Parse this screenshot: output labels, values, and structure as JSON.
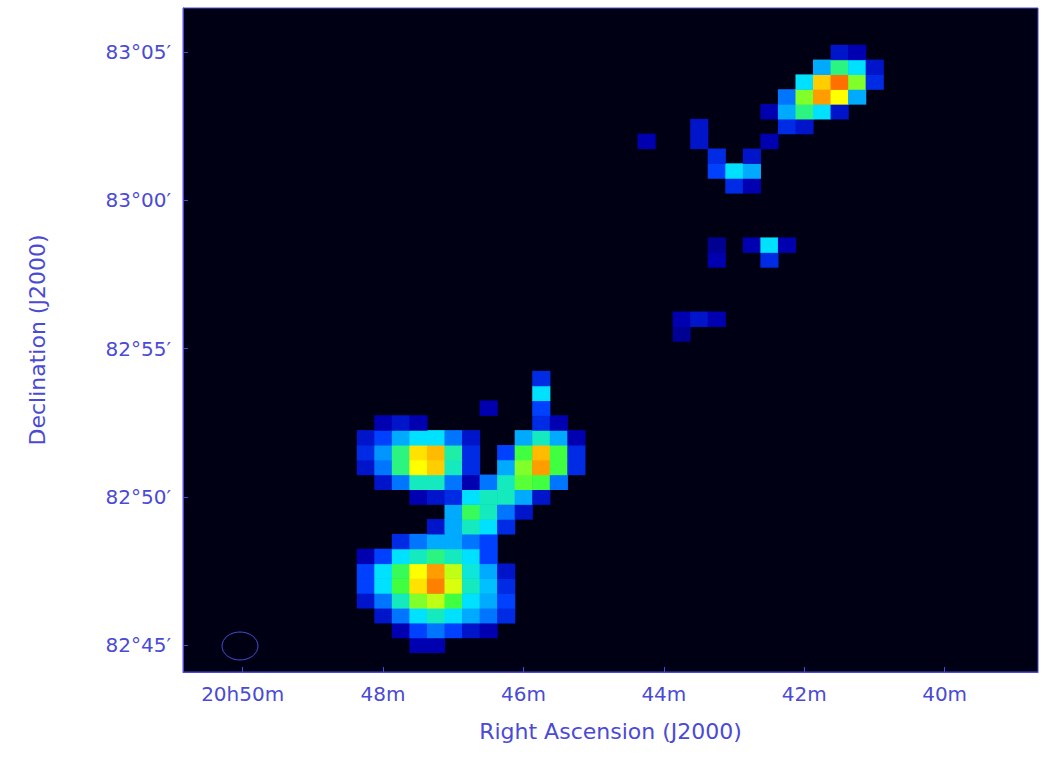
{
  "chart_data": {
    "type": "heatmap",
    "x_label": "Right Ascension (J2000)",
    "y_label": "Declination (J2000)",
    "xlim": [
      50.85,
      38.67
    ],
    "xticks": [
      {
        "value": 50,
        "label": "20h50m"
      },
      {
        "value": 48,
        "label": "48m"
      },
      {
        "value": 46,
        "label": "46m"
      },
      {
        "value": 44,
        "label": "44m"
      },
      {
        "value": 42,
        "label": "42m"
      },
      {
        "value": 40,
        "label": "40m"
      }
    ],
    "ylim": [
      4964.09,
      4986.49
    ],
    "yticks": [
      {
        "value": 4965,
        "label": "82°45′"
      },
      {
        "value": 4970,
        "label": "82°50′"
      },
      {
        "value": 4975,
        "label": "82°55′"
      },
      {
        "value": 4980,
        "label": "83°00′"
      },
      {
        "value": 4985,
        "label": "83°05′"
      }
    ],
    "grid": false,
    "color_range": [
      0,
      100
    ],
    "cells": [
      [
        47.5,
        4965,
        15
      ],
      [
        47.25,
        4965,
        15
      ],
      [
        47.75,
        4965.5,
        15
      ],
      [
        47.5,
        4965.5,
        30
      ],
      [
        47.25,
        4965.5,
        35
      ],
      [
        47.0,
        4965.5,
        30
      ],
      [
        46.75,
        4965.5,
        20
      ],
      [
        46.5,
        4965.5,
        15
      ],
      [
        48.0,
        4966,
        20
      ],
      [
        47.75,
        4966,
        35
      ],
      [
        47.5,
        4966,
        45
      ],
      [
        47.25,
        4966,
        50
      ],
      [
        47.0,
        4966,
        45
      ],
      [
        46.75,
        4966,
        40
      ],
      [
        46.5,
        4966,
        35
      ],
      [
        46.25,
        4966,
        25
      ],
      [
        48.25,
        4966.5,
        20
      ],
      [
        48.0,
        4966.5,
        35
      ],
      [
        47.75,
        4966.5,
        50
      ],
      [
        47.5,
        4966.5,
        65
      ],
      [
        47.25,
        4966.5,
        70
      ],
      [
        47.0,
        4966.5,
        60
      ],
      [
        46.75,
        4966.5,
        45
      ],
      [
        46.5,
        4966.5,
        40
      ],
      [
        46.25,
        4966.5,
        30
      ],
      [
        48.25,
        4967,
        30
      ],
      [
        48.0,
        4967,
        45
      ],
      [
        47.75,
        4967,
        60
      ],
      [
        47.5,
        4967,
        78
      ],
      [
        47.25,
        4967,
        88
      ],
      [
        47.0,
        4967,
        72
      ],
      [
        46.75,
        4967,
        50
      ],
      [
        46.5,
        4967,
        42
      ],
      [
        46.25,
        4967,
        25
      ],
      [
        48.25,
        4967.5,
        30
      ],
      [
        48.0,
        4967.5,
        45
      ],
      [
        47.75,
        4967.5,
        58
      ],
      [
        47.5,
        4967.5,
        75
      ],
      [
        47.25,
        4967.5,
        85
      ],
      [
        47.0,
        4967.5,
        70
      ],
      [
        46.75,
        4967.5,
        48
      ],
      [
        46.5,
        4967.5,
        40
      ],
      [
        46.25,
        4967.5,
        20
      ],
      [
        48.25,
        4968,
        15
      ],
      [
        48.0,
        4968,
        30
      ],
      [
        47.75,
        4968,
        45
      ],
      [
        47.5,
        4968,
        50
      ],
      [
        47.25,
        4968,
        55
      ],
      [
        47.0,
        4968,
        50
      ],
      [
        46.75,
        4968,
        45
      ],
      [
        46.5,
        4968,
        30
      ],
      [
        47.75,
        4968.5,
        25
      ],
      [
        47.5,
        4968.5,
        35
      ],
      [
        47.25,
        4968.5,
        40
      ],
      [
        47.0,
        4968.5,
        40
      ],
      [
        46.75,
        4968.5,
        35
      ],
      [
        46.5,
        4968.5,
        30
      ],
      [
        47.25,
        4969,
        20
      ],
      [
        47.0,
        4969,
        40
      ],
      [
        46.75,
        4969,
        50
      ],
      [
        46.5,
        4969,
        45
      ],
      [
        46.25,
        4969,
        25
      ],
      [
        47.0,
        4969.5,
        40
      ],
      [
        46.75,
        4969.5,
        58
      ],
      [
        46.5,
        4969.5,
        50
      ],
      [
        46.25,
        4969.5,
        35
      ],
      [
        46.0,
        4969.5,
        20
      ],
      [
        47.5,
        4970,
        15
      ],
      [
        47.25,
        4970,
        20
      ],
      [
        47.0,
        4970,
        25
      ],
      [
        46.75,
        4970,
        45
      ],
      [
        46.5,
        4970,
        50
      ],
      [
        46.25,
        4970,
        50
      ],
      [
        46.0,
        4970,
        40
      ],
      [
        45.75,
        4970,
        20
      ],
      [
        48.0,
        4970.5,
        20
      ],
      [
        47.75,
        4970.5,
        35
      ],
      [
        47.5,
        4970.5,
        50
      ],
      [
        47.25,
        4970.5,
        50
      ],
      [
        47.0,
        4970.5,
        35
      ],
      [
        46.75,
        4970.5,
        15
      ],
      [
        46.5,
        4970.5,
        35
      ],
      [
        46.25,
        4970.5,
        50
      ],
      [
        46.0,
        4970.5,
        62
      ],
      [
        45.75,
        4970.5,
        60
      ],
      [
        45.5,
        4970.5,
        35
      ],
      [
        48.25,
        4971,
        20
      ],
      [
        48.0,
        4971,
        35
      ],
      [
        47.75,
        4971,
        55
      ],
      [
        47.5,
        4971,
        75
      ],
      [
        47.25,
        4971,
        80
      ],
      [
        47.0,
        4971,
        50
      ],
      [
        46.75,
        4971,
        25
      ],
      [
        46.25,
        4971,
        40
      ],
      [
        46.0,
        4971,
        65
      ],
      [
        45.75,
        4971,
        85
      ],
      [
        45.5,
        4971,
        60
      ],
      [
        45.25,
        4971,
        25
      ],
      [
        48.25,
        4971.5,
        25
      ],
      [
        48.0,
        4971.5,
        38
      ],
      [
        47.75,
        4971.5,
        55
      ],
      [
        47.5,
        4971.5,
        78
      ],
      [
        47.25,
        4971.5,
        82
      ],
      [
        47.0,
        4971.5,
        52
      ],
      [
        46.75,
        4971.5,
        25
      ],
      [
        46.25,
        4971.5,
        30
      ],
      [
        46.0,
        4971.5,
        60
      ],
      [
        45.75,
        4971.5,
        82
      ],
      [
        45.5,
        4971.5,
        60
      ],
      [
        45.25,
        4971.5,
        25
      ],
      [
        48.25,
        4972,
        20
      ],
      [
        48.0,
        4972,
        30
      ],
      [
        47.75,
        4972,
        40
      ],
      [
        47.5,
        4972,
        45
      ],
      [
        47.25,
        4972,
        45
      ],
      [
        47.0,
        4972,
        35
      ],
      [
        46.75,
        4972,
        20
      ],
      [
        46.0,
        4972,
        40
      ],
      [
        45.75,
        4972,
        50
      ],
      [
        45.5,
        4972,
        40
      ],
      [
        45.25,
        4972,
        15
      ],
      [
        48.0,
        4972.5,
        15
      ],
      [
        47.75,
        4972.5,
        20
      ],
      [
        47.5,
        4972.5,
        15
      ],
      [
        45.75,
        4972.5,
        25
      ],
      [
        45.5,
        4972.5,
        15
      ],
      [
        46.5,
        4973,
        15
      ],
      [
        45.75,
        4973,
        30
      ],
      [
        45.75,
        4973.5,
        45
      ],
      [
        45.75,
        4974,
        25
      ],
      [
        43.75,
        4975.5,
        12
      ],
      [
        43.75,
        4976,
        15
      ],
      [
        43.5,
        4976,
        20
      ],
      [
        43.25,
        4976,
        15
      ],
      [
        43.25,
        4978,
        15
      ],
      [
        42.5,
        4978,
        25
      ],
      [
        43.25,
        4978.5,
        12
      ],
      [
        42.75,
        4978.5,
        15
      ],
      [
        42.5,
        4978.5,
        45
      ],
      [
        42.25,
        4978.5,
        15
      ],
      [
        43.0,
        4980.5,
        25
      ],
      [
        42.75,
        4980.5,
        15
      ],
      [
        43.25,
        4981,
        30
      ],
      [
        43.0,
        4981,
        45
      ],
      [
        42.75,
        4981,
        40
      ],
      [
        43.25,
        4981.5,
        25
      ],
      [
        42.75,
        4981.5,
        20
      ],
      [
        44.25,
        4982,
        15
      ],
      [
        43.5,
        4982,
        20
      ],
      [
        42.5,
        4982,
        15
      ],
      [
        43.5,
        4982.5,
        20
      ],
      [
        42.25,
        4982.5,
        25
      ],
      [
        42.0,
        4982.5,
        20
      ],
      [
        42.5,
        4983,
        15
      ],
      [
        42.25,
        4983,
        40
      ],
      [
        42.0,
        4983,
        55
      ],
      [
        41.75,
        4983,
        45
      ],
      [
        41.5,
        4983,
        20
      ],
      [
        42.25,
        4983.5,
        35
      ],
      [
        42.0,
        4983.5,
        65
      ],
      [
        41.75,
        4983.5,
        85
      ],
      [
        41.5,
        4983.5,
        75
      ],
      [
        41.25,
        4983.5,
        40
      ],
      [
        42.0,
        4984,
        45
      ],
      [
        41.75,
        4984,
        80
      ],
      [
        41.5,
        4984,
        90
      ],
      [
        41.25,
        4984,
        65
      ],
      [
        41.0,
        4984,
        25
      ],
      [
        41.75,
        4984.5,
        40
      ],
      [
        41.5,
        4984.5,
        55
      ],
      [
        41.25,
        4984.5,
        45
      ],
      [
        41.0,
        4984.5,
        20
      ],
      [
        41.5,
        4985,
        20
      ],
      [
        41.25,
        4985,
        15
      ]
    ]
  }
}
